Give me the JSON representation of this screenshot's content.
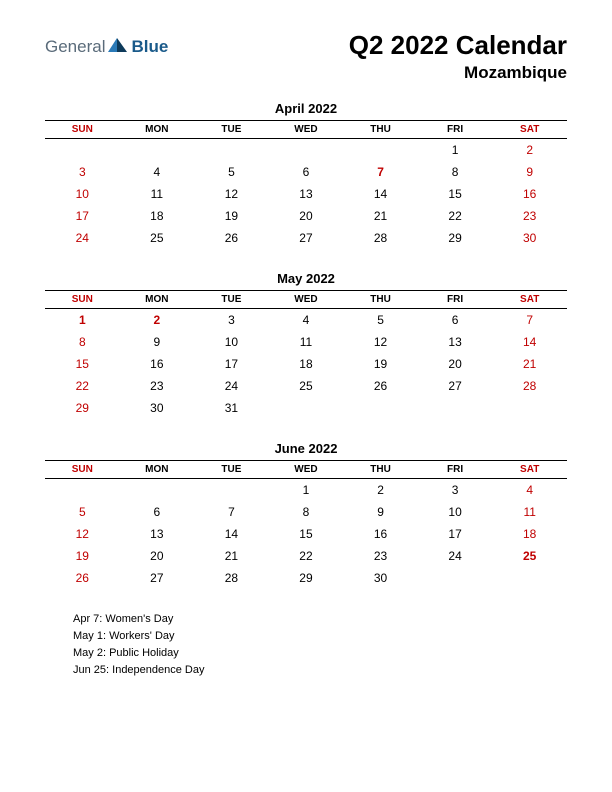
{
  "logo": {
    "text1": "General",
    "text2": "Blue"
  },
  "title": "Q2 2022 Calendar",
  "subtitle": "Mozambique",
  "day_headers": [
    "SUN",
    "MON",
    "TUE",
    "WED",
    "THU",
    "FRI",
    "SAT"
  ],
  "weekend_cols": [
    0,
    6
  ],
  "text_color": "#000000",
  "weekend_color": "#c00000",
  "holiday_color": "#c00000",
  "background_color": "#ffffff",
  "months": [
    {
      "title": "April 2022",
      "weeks": [
        [
          "",
          "",
          "",
          "",
          "",
          "1",
          "2"
        ],
        [
          "3",
          "4",
          "5",
          "6",
          "7",
          "8",
          "9"
        ],
        [
          "10",
          "11",
          "12",
          "13",
          "14",
          "15",
          "16"
        ],
        [
          "17",
          "18",
          "19",
          "20",
          "21",
          "22",
          "23"
        ],
        [
          "24",
          "25",
          "26",
          "27",
          "28",
          "29",
          "30"
        ]
      ],
      "holidays": [
        "7"
      ]
    },
    {
      "title": "May 2022",
      "weeks": [
        [
          "1",
          "2",
          "3",
          "4",
          "5",
          "6",
          "7"
        ],
        [
          "8",
          "9",
          "10",
          "11",
          "12",
          "13",
          "14"
        ],
        [
          "15",
          "16",
          "17",
          "18",
          "19",
          "20",
          "21"
        ],
        [
          "22",
          "23",
          "24",
          "25",
          "26",
          "27",
          "28"
        ],
        [
          "29",
          "30",
          "31",
          "",
          "",
          "",
          ""
        ]
      ],
      "holidays": [
        "1",
        "2"
      ]
    },
    {
      "title": "June 2022",
      "weeks": [
        [
          "",
          "",
          "",
          "1",
          "2",
          "3",
          "4"
        ],
        [
          "5",
          "6",
          "7",
          "8",
          "9",
          "10",
          "11"
        ],
        [
          "12",
          "13",
          "14",
          "15",
          "16",
          "17",
          "18"
        ],
        [
          "19",
          "20",
          "21",
          "22",
          "23",
          "24",
          "25"
        ],
        [
          "26",
          "27",
          "28",
          "29",
          "30",
          "",
          ""
        ]
      ],
      "holidays": [
        "25"
      ]
    }
  ],
  "holiday_list": [
    "Apr 7: Women's Day",
    "May 1: Workers' Day",
    "May 2: Public Holiday",
    "Jun 25: Independence Day"
  ]
}
